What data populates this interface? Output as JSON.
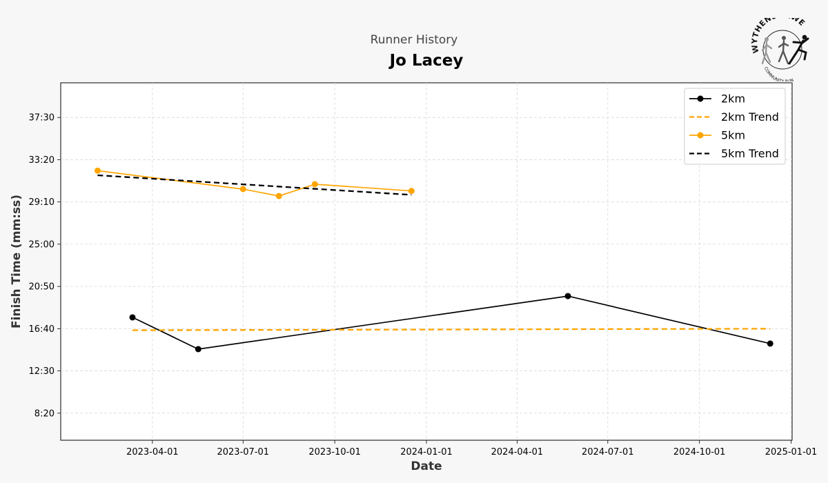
{
  "chart_data": {
    "type": "line",
    "supertitle": "Runner History",
    "title": "Jo Lacey",
    "xlabel": "Date",
    "ylabel": "Finish Time (mm:ss)",
    "x_tick_labels": [
      "2023-04-01",
      "2023-07-01",
      "2023-10-01",
      "2024-01-01",
      "2024-04-01",
      "2024-07-01",
      "2024-10-01",
      "2025-01-01"
    ],
    "y_tick_labels": [
      "8:20",
      "12:30",
      "16:40",
      "20:50",
      "25:00",
      "29:10",
      "33:20",
      "37:30"
    ],
    "y_tick_values": [
      500,
      750,
      1000,
      1250,
      1500,
      1750,
      2000,
      2250
    ],
    "x_range": [
      "2022-12-30",
      "2025-01-02"
    ],
    "ylim": [
      340,
      2455
    ],
    "grid": true,
    "legend_position": "top-right",
    "series": [
      {
        "name": "2km",
        "color": "#000000",
        "style": "solid",
        "marker": true,
        "points": [
          [
            "2023-03-12",
            1067
          ],
          [
            "2023-05-17",
            879
          ],
          [
            "2024-05-22",
            1193
          ],
          [
            "2024-12-11",
            912
          ]
        ]
      },
      {
        "name": "2km Trend",
        "color": "#ffa500",
        "style": "dashed",
        "marker": false,
        "points": [
          [
            "2023-03-12",
            991
          ],
          [
            "2024-12-11",
            1000
          ]
        ]
      },
      {
        "name": "5km",
        "color": "#ffa500",
        "style": "solid",
        "marker": true,
        "points": [
          [
            "2023-02-05",
            1935
          ],
          [
            "2023-07-01",
            1826
          ],
          [
            "2023-08-06",
            1785
          ],
          [
            "2023-09-11",
            1855
          ],
          [
            "2023-12-17",
            1815
          ]
        ]
      },
      {
        "name": "5km Trend",
        "color": "#000000",
        "style": "dashed",
        "marker": false,
        "points": [
          [
            "2023-02-05",
            1908
          ],
          [
            "2023-12-17",
            1792
          ]
        ]
      }
    ]
  },
  "logo": {
    "text_top": "WYTHENSHAWE",
    "text_bottom": "COMMUNITY RUN"
  }
}
